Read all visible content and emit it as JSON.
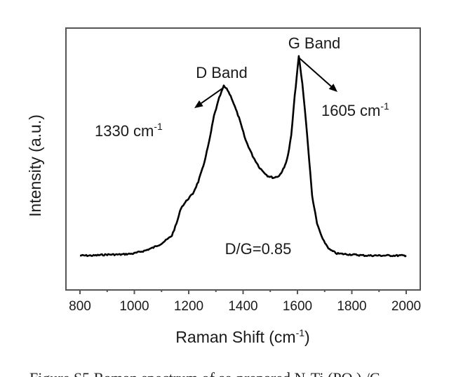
{
  "chart_data": {
    "type": "line",
    "title": "",
    "xlabel": "Raman Shift (cm",
    "xlabel_sup": "-1",
    "xlabel_end": ")",
    "ylabel": "Intensity (a.u.)",
    "xlim": [
      800,
      2000
    ],
    "ylim": [
      -0.15,
      1.15
    ],
    "xticks": [
      800,
      1000,
      1200,
      1400,
      1600,
      1800,
      2000
    ],
    "xtick_labels": [
      "800",
      "1000",
      "1200",
      "1400",
      "1600",
      "1800",
      "2000"
    ],
    "grid": false,
    "series": [
      {
        "name": "Raman spectrum",
        "color": "#000000",
        "x": [
          800,
          850,
          900,
          950,
          996,
          1040,
          1070,
          1099,
          1120,
          1138,
          1155,
          1172,
          1195,
          1215,
          1235,
          1254,
          1275,
          1293,
          1312,
          1329,
          1343,
          1358,
          1385,
          1409,
          1435,
          1461,
          1490,
          1512,
          1533,
          1551,
          1565,
          1577,
          1590,
          1605,
          1618,
          1631,
          1643,
          1654,
          1672,
          1693,
          1718,
          1745,
          1800,
          1850,
          1900,
          1950,
          2000
        ],
        "values": [
          0.0,
          0.0,
          0.005,
          0.005,
          0.01,
          0.025,
          0.04,
          0.06,
          0.08,
          0.1,
          0.16,
          0.24,
          0.28,
          0.31,
          0.37,
          0.45,
          0.57,
          0.7,
          0.79,
          0.85,
          0.83,
          0.79,
          0.69,
          0.58,
          0.5,
          0.44,
          0.4,
          0.39,
          0.4,
          0.44,
          0.5,
          0.6,
          0.8,
          1.0,
          0.86,
          0.68,
          0.48,
          0.3,
          0.16,
          0.08,
          0.03,
          0.01,
          0.005,
          0.0,
          0.0,
          0.0,
          0.0
        ]
      }
    ],
    "annotations": {
      "d_band_label": "D Band",
      "d_band_position": "1330 cm",
      "d_band_sup": "-1",
      "d_band_peak_x": 1330,
      "g_band_label": "G Band",
      "g_band_position": "1605 cm",
      "g_band_sup": "-1",
      "g_band_peak_x": 1605,
      "ratio": "D/G=0.85"
    }
  },
  "caption_partial": "Figure S5 Raman spectrum of as-prepared N-Ti (PO ) /C"
}
